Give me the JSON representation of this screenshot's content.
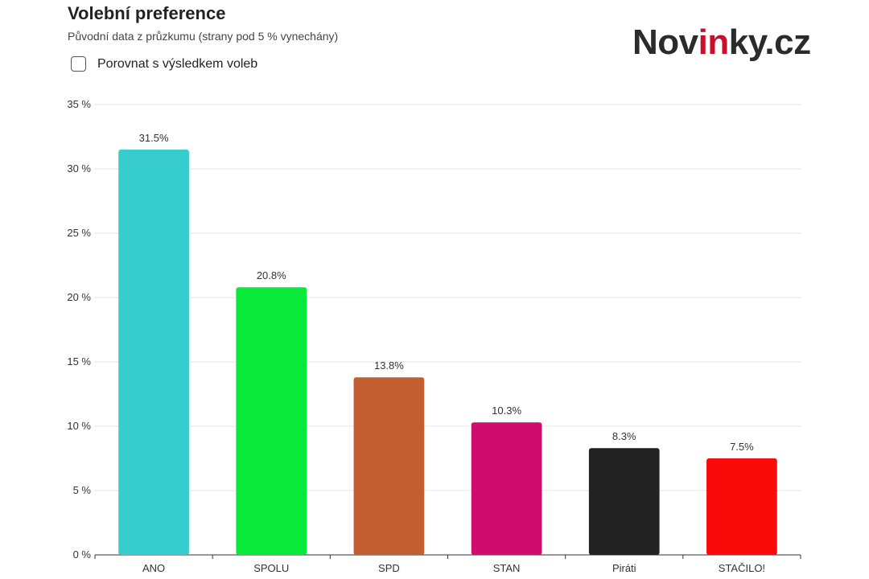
{
  "header": {
    "title": "Volební preference",
    "subtitle": "Původní data z průzkumu (strany pod 5 % vynechány)",
    "compare_label": "Porovnat s výsledkem voleb",
    "compare_checked": false
  },
  "logo": {
    "prefix": "Nov",
    "accent": "in",
    "suffix": "ky.cz"
  },
  "chart_data": {
    "type": "bar",
    "categories": [
      "ANO",
      "SPOLU",
      "SPD",
      "STAN",
      "Piráti",
      "STAČILO!"
    ],
    "values": [
      31.5,
      20.8,
      13.8,
      10.3,
      8.3,
      7.5
    ],
    "value_labels": [
      "31.5%",
      "20.8%",
      "13.8%",
      "10.3%",
      "8.3%",
      "7.5%"
    ],
    "colors": [
      "#38cdcd",
      "#08e93a",
      "#c25e2f",
      "#ce0d6e",
      "#222222",
      "#fb0a0a"
    ],
    "ylim": [
      0,
      35
    ],
    "yticks": [
      0,
      5,
      10,
      15,
      20,
      25,
      30,
      35
    ],
    "ytick_labels": [
      "0 %",
      "5 %",
      "10 %",
      "15 %",
      "20 %",
      "25 %",
      "30 %",
      "35 %"
    ],
    "grid": true,
    "legend": "none"
  }
}
